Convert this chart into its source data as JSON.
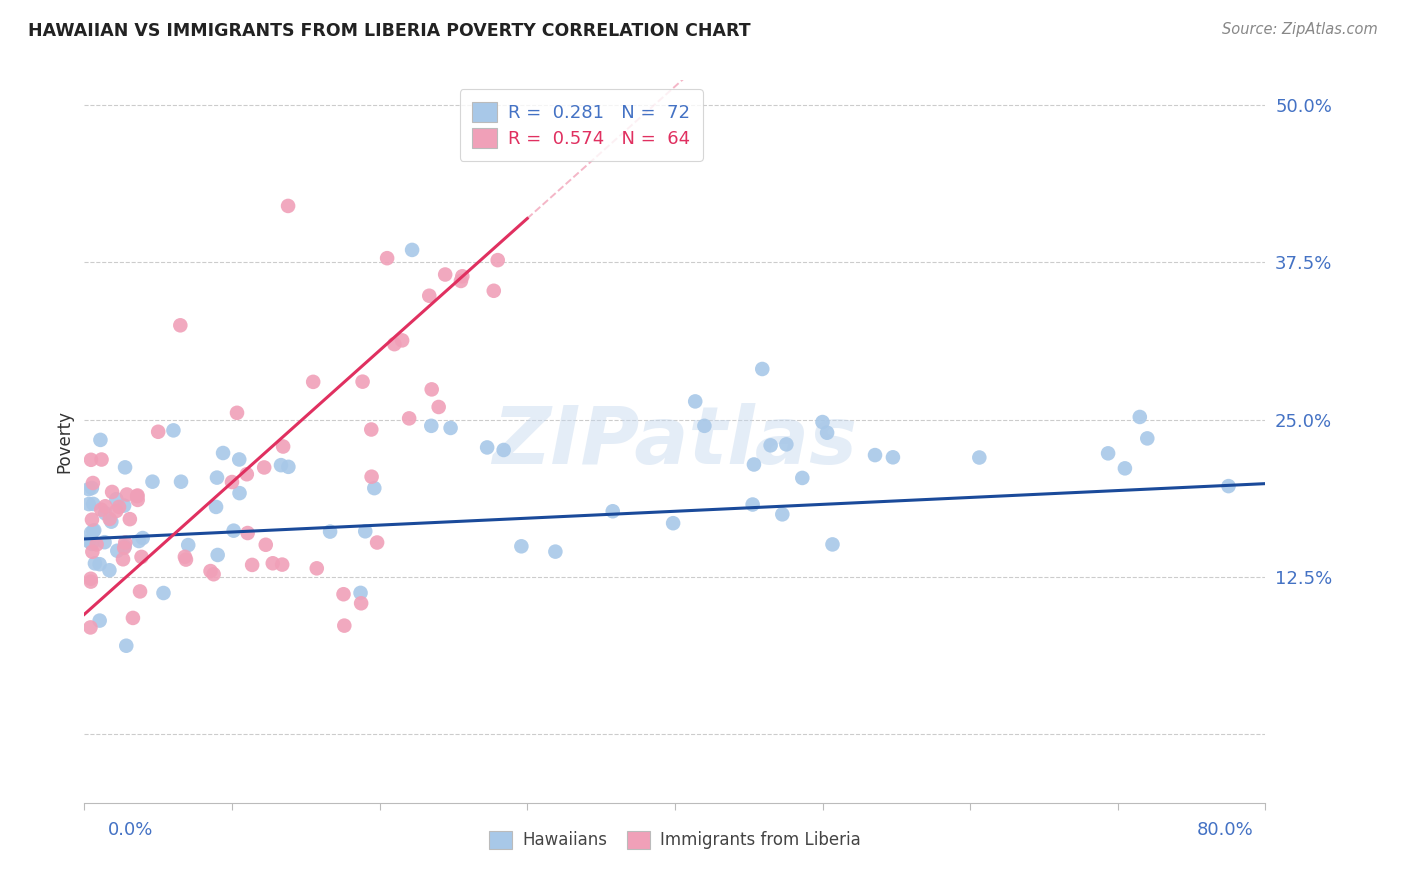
{
  "title": "HAWAIIAN VS IMMIGRANTS FROM LIBERIA POVERTY CORRELATION CHART",
  "source": "Source: ZipAtlas.com",
  "ylabel": "Poverty",
  "watermark": "ZIPatlas",
  "hawaiians_color": "#a8c8e8",
  "liberia_color": "#f0a0b8",
  "trendline_hawaiians_color": "#1a4a9a",
  "trendline_liberia_color": "#e03060",
  "xmin": 0.0,
  "xmax": 0.8,
  "ymin": -0.055,
  "ymax": 0.52,
  "ytick_vals": [
    0.0,
    0.125,
    0.25,
    0.375,
    0.5
  ],
  "ytick_labels": [
    "",
    "12.5%",
    "25.0%",
    "37.5%",
    "50.0%"
  ],
  "legend1_text": "R =  0.281   N =  72",
  "legend2_text": "R =  0.574   N =  64",
  "legend1_color": "#4472c4",
  "legend2_color": "#e03060",
  "bottom_label1": "Hawaiians",
  "bottom_label2": "Immigrants from Liberia"
}
